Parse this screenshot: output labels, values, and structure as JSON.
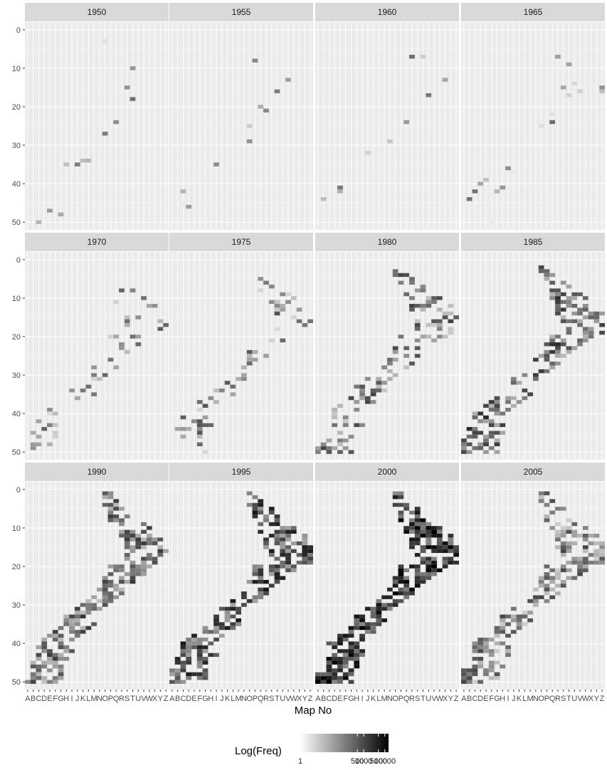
{
  "chart_data": {
    "type": "heatmap",
    "facets": [
      "1950",
      "1955",
      "1960",
      "1965",
      "1970",
      "1975",
      "1980",
      "1985",
      "1990",
      "1995",
      "2000",
      "2005"
    ],
    "xlabel": "Map No",
    "x_categories": [
      "A",
      "B",
      "C",
      "D",
      "E",
      "F",
      "G",
      "H",
      "I",
      "J",
      "K",
      "L",
      "M",
      "N",
      "O",
      "P",
      "Q",
      "R",
      "S",
      "T",
      "U",
      "V",
      "W",
      "X",
      "Y",
      "Z"
    ],
    "y_ticks": [
      0,
      10,
      20,
      30,
      40,
      50
    ],
    "ylim": [
      52,
      -2
    ],
    "legend": {
      "title": "Log(Freq)",
      "labels": [
        "1",
        "500",
        "1000",
        "5000",
        "10000"
      ],
      "scale": "log",
      "range": [
        1,
        15000
      ],
      "colors": [
        "#ffffff",
        "#000000"
      ],
      "position": "bottom"
    },
    "grid": true,
    "panel_background": "#ebebeb",
    "strip_background": "#d9d9d9",
    "density_levels": [
      0.02,
      0.01,
      0.0,
      0.07,
      0.16,
      0.37,
      0.62,
      0.94,
      1.26,
      1.59,
      1.88,
      1.1
    ]
  }
}
